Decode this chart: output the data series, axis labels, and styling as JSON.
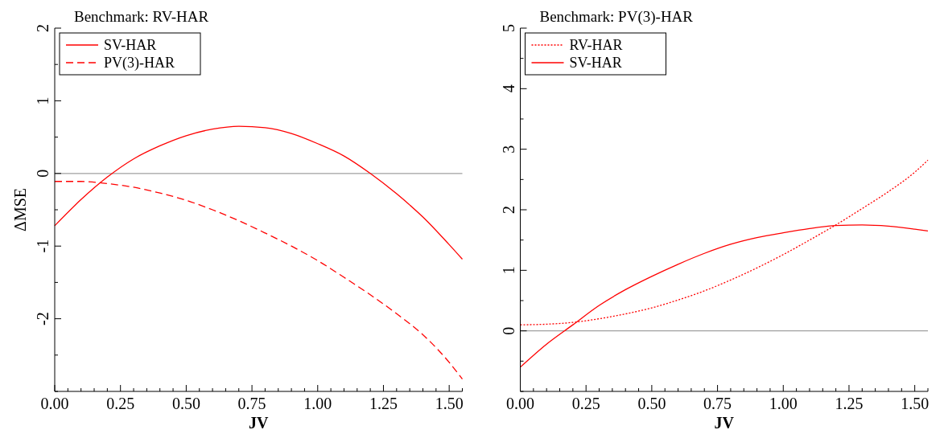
{
  "chart_data": [
    {
      "type": "line",
      "title": "Benchmark: RV-HAR",
      "xlabel": "JV",
      "ylabel": "ΔMSE",
      "legend": "top left",
      "x": [
        0,
        0.1,
        0.2,
        0.3,
        0.4,
        0.5,
        0.6,
        0.7,
        0.8,
        0.9,
        1.0,
        1.1,
        1.2,
        1.3,
        1.4,
        1.5,
        1.55
      ],
      "series": [
        {
          "name": "SV-HAR",
          "color": "#ff0000",
          "line_style": "solid",
          "values": [
            -0.72,
            -0.36,
            -0.05,
            0.2,
            0.38,
            0.52,
            0.61,
            0.65,
            0.63,
            0.55,
            0.41,
            0.24,
            0.0,
            -0.28,
            -0.6,
            -0.98,
            -1.18
          ]
        },
        {
          "name": "PV(3)-HAR",
          "color": "#ff0000",
          "line_style": "dashed",
          "values": [
            -0.11,
            -0.11,
            -0.14,
            -0.19,
            -0.27,
            -0.37,
            -0.5,
            -0.65,
            -0.82,
            -1.0,
            -1.2,
            -1.43,
            -1.67,
            -1.93,
            -2.22,
            -2.6,
            -2.83
          ]
        }
      ],
      "xlim": [
        0,
        1.55
      ],
      "xticks": [
        {
          "value": 0,
          "label": "0.00"
        },
        {
          "value": 0.05,
          "label": null
        },
        {
          "value": 0.1,
          "label": null
        },
        {
          "value": 0.15,
          "label": null
        },
        {
          "value": 0.2,
          "label": null
        },
        {
          "value": 0.25,
          "label": "0.25"
        },
        {
          "value": 0.3,
          "label": null
        },
        {
          "value": 0.35,
          "label": null
        },
        {
          "value": 0.4,
          "label": null
        },
        {
          "value": 0.45,
          "label": null
        },
        {
          "value": 0.5,
          "label": "0.50"
        },
        {
          "value": 0.55,
          "label": null
        },
        {
          "value": 0.6,
          "label": null
        },
        {
          "value": 0.65,
          "label": null
        },
        {
          "value": 0.7,
          "label": null
        },
        {
          "value": 0.75,
          "label": "0.75"
        },
        {
          "value": 0.8,
          "label": null
        },
        {
          "value": 0.85,
          "label": null
        },
        {
          "value": 0.9,
          "label": null
        },
        {
          "value": 0.95,
          "label": null
        },
        {
          "value": 1.0,
          "label": "1.00"
        },
        {
          "value": 1.05,
          "label": null
        },
        {
          "value": 1.1,
          "label": null
        },
        {
          "value": 1.15,
          "label": null
        },
        {
          "value": 1.2,
          "label": null
        },
        {
          "value": 1.25,
          "label": "1.25"
        },
        {
          "value": 1.3,
          "label": null
        },
        {
          "value": 1.35,
          "label": null
        },
        {
          "value": 1.4,
          "label": null
        },
        {
          "value": 1.45,
          "label": null
        },
        {
          "value": 1.5,
          "label": "1.50"
        },
        {
          "value": 1.55,
          "label": null
        }
      ],
      "ylim": [
        -3,
        2
      ],
      "yticks": [
        {
          "value": -3,
          "label": null
        },
        {
          "value": -2.5,
          "label": null
        },
        -2,
        {
          "value": -1.5,
          "label": null
        },
        -1,
        {
          "value": -0.5,
          "label": null
        },
        0,
        {
          "value": 0.5,
          "label": null
        },
        1,
        {
          "value": 1.5,
          "label": null
        },
        2
      ],
      "ref_lines": [
        {
          "axis": "y",
          "value": 0,
          "color": "#a0a0a0"
        }
      ]
    },
    {
      "type": "line",
      "title": "Benchmark: PV(3)-HAR",
      "xlabel": "JV",
      "legend": "top left",
      "x": [
        0,
        0.1,
        0.2,
        0.3,
        0.4,
        0.5,
        0.6,
        0.7,
        0.8,
        0.9,
        1.0,
        1.1,
        1.2,
        1.3,
        1.4,
        1.5,
        1.55
      ],
      "series": [
        {
          "name": "RV-HAR",
          "color": "#ff0000",
          "line_style": "dotted",
          "values": [
            0.1,
            0.11,
            0.14,
            0.2,
            0.28,
            0.38,
            0.51,
            0.66,
            0.84,
            1.04,
            1.26,
            1.5,
            1.75,
            2.02,
            2.3,
            2.62,
            2.82
          ]
        },
        {
          "name": "SV-HAR",
          "color": "#ff0000",
          "line_style": "solid",
          "values": [
            -0.6,
            -0.22,
            0.1,
            0.42,
            0.68,
            0.9,
            1.1,
            1.28,
            1.43,
            1.54,
            1.62,
            1.69,
            1.74,
            1.75,
            1.73,
            1.68,
            1.65
          ]
        }
      ],
      "xlim": [
        0,
        1.55
      ],
      "xticks": [
        {
          "value": 0,
          "label": "0.00"
        },
        {
          "value": 0.05,
          "label": null
        },
        {
          "value": 0.1,
          "label": null
        },
        {
          "value": 0.15,
          "label": null
        },
        {
          "value": 0.2,
          "label": null
        },
        {
          "value": 0.25,
          "label": "0.25"
        },
        {
          "value": 0.3,
          "label": null
        },
        {
          "value": 0.35,
          "label": null
        },
        {
          "value": 0.4,
          "label": null
        },
        {
          "value": 0.45,
          "label": null
        },
        {
          "value": 0.5,
          "label": "0.50"
        },
        {
          "value": 0.55,
          "label": null
        },
        {
          "value": 0.6,
          "label": null
        },
        {
          "value": 0.65,
          "label": null
        },
        {
          "value": 0.7,
          "label": null
        },
        {
          "value": 0.75,
          "label": "0.75"
        },
        {
          "value": 0.8,
          "label": null
        },
        {
          "value": 0.85,
          "label": null
        },
        {
          "value": 0.9,
          "label": null
        },
        {
          "value": 0.95,
          "label": null
        },
        {
          "value": 1.0,
          "label": "1.00"
        },
        {
          "value": 1.05,
          "label": null
        },
        {
          "value": 1.1,
          "label": null
        },
        {
          "value": 1.15,
          "label": null
        },
        {
          "value": 1.2,
          "label": null
        },
        {
          "value": 1.25,
          "label": "1.25"
        },
        {
          "value": 1.3,
          "label": null
        },
        {
          "value": 1.35,
          "label": null
        },
        {
          "value": 1.4,
          "label": null
        },
        {
          "value": 1.45,
          "label": null
        },
        {
          "value": 1.5,
          "label": "1.50"
        },
        {
          "value": 1.55,
          "label": null
        }
      ],
      "ylim": [
        -1,
        5
      ],
      "yticks": [
        {
          "value": -1,
          "label": null
        },
        {
          "value": -0.5,
          "label": null
        },
        0,
        {
          "value": 0.5,
          "label": null
        },
        1,
        {
          "value": 1.5,
          "label": null
        },
        2,
        {
          "value": 2.5,
          "label": null
        },
        3,
        {
          "value": 3.5,
          "label": null
        },
        4,
        {
          "value": 4.5,
          "label": null
        },
        5
      ],
      "ref_lines": [
        {
          "axis": "y",
          "value": 0,
          "color": "#a0a0a0"
        }
      ]
    }
  ]
}
